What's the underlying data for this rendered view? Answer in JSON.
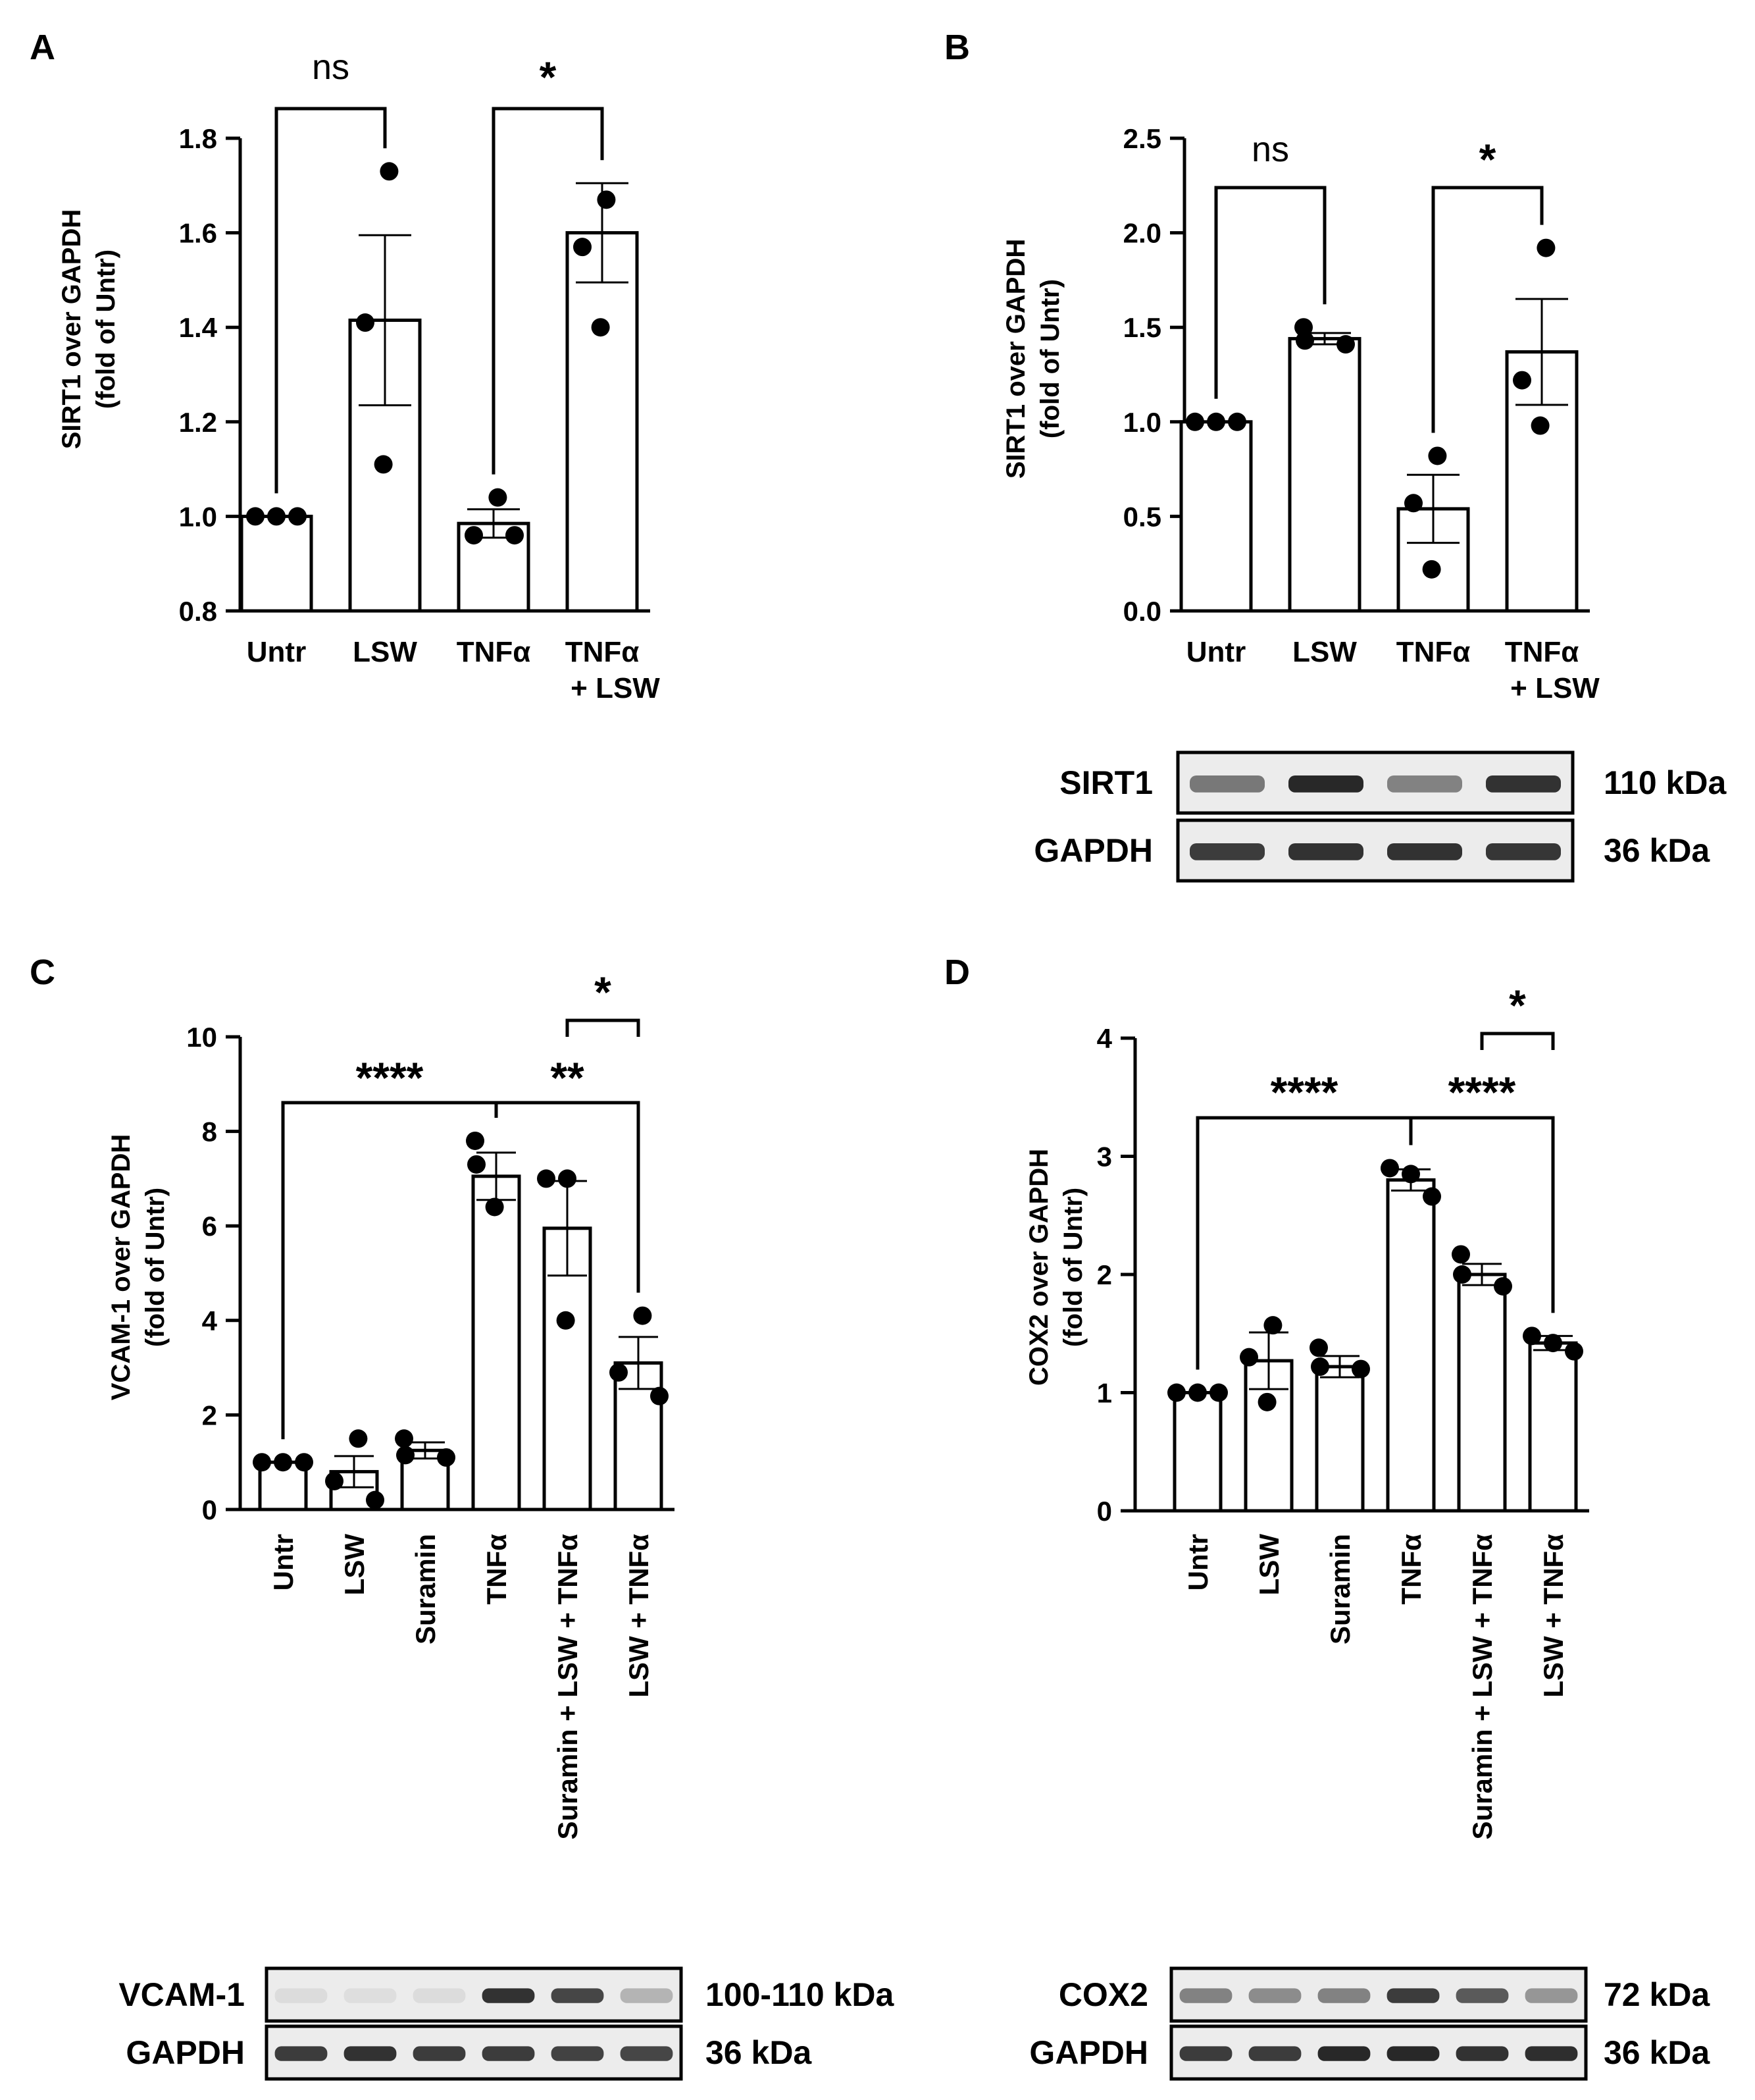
{
  "chart_data": [
    {
      "panel": "A",
      "type": "bar",
      "ylabel_lines": [
        "SIRT1 over GAPDH",
        "(fold of Untr)"
      ],
      "categories": [
        [
          "Untr"
        ],
        [
          "LSW"
        ],
        [
          "TNFα"
        ],
        [
          "TNFα",
          "+ LSW"
        ]
      ],
      "means": [
        1.0,
        1.415,
        0.985,
        1.6
      ],
      "sem": [
        0.0,
        0.18,
        0.03,
        0.105
      ],
      "points": [
        [
          1.0,
          1.0,
          1.0
        ],
        [
          1.73,
          1.41,
          1.11
        ],
        [
          1.04,
          0.96,
          0.96
        ],
        [
          1.67,
          1.57,
          1.4
        ]
      ],
      "ylim": [
        0.8,
        1.8
      ],
      "yticks": [
        "0.8",
        "1.0",
        "1.2",
        "1.4",
        "1.6",
        "1.8"
      ],
      "comparisons": [
        {
          "from": 0,
          "to": 1,
          "label": "ns"
        },
        {
          "from": 2,
          "to": 3,
          "label": "*"
        }
      ]
    },
    {
      "panel": "B",
      "type": "bar",
      "ylabel_lines": [
        "SIRT1 over GAPDH",
        "(fold of Untr)"
      ],
      "categories": [
        [
          "Untr"
        ],
        [
          "LSW"
        ],
        [
          "TNFα"
        ],
        [
          "TNFα",
          "+ LSW"
        ]
      ],
      "means": [
        1.0,
        1.44,
        0.54,
        1.37
      ],
      "sem": [
        0.0,
        0.03,
        0.18,
        0.28
      ],
      "points": [
        [
          1.0,
          1.0,
          1.0
        ],
        [
          1.5,
          1.43,
          1.41
        ],
        [
          0.82,
          0.57,
          0.22
        ],
        [
          1.92,
          1.22,
          0.98
        ]
      ],
      "ylim": [
        0.0,
        2.5
      ],
      "yticks": [
        "0.0",
        "0.5",
        "1.0",
        "1.5",
        "2.0",
        "2.5"
      ],
      "comparisons": [
        {
          "from": 0,
          "to": 1,
          "label": "ns"
        },
        {
          "from": 2,
          "to": 3,
          "label": "*"
        }
      ],
      "blot": [
        {
          "name": "SIRT1",
          "size": "110 kDa",
          "intensity": [
            0.55,
            0.95,
            0.5,
            0.9
          ]
        },
        {
          "name": "GAPDH",
          "size": "36 kDa",
          "intensity": [
            0.85,
            0.9,
            0.9,
            0.88
          ]
        }
      ]
    },
    {
      "panel": "C",
      "type": "bar",
      "ylabel_lines": [
        "VCAM-1 over GAPDH",
        "(fold of Untr)"
      ],
      "categories": [
        [
          "Untr"
        ],
        [
          "LSW"
        ],
        [
          "Suramin"
        ],
        [
          "TNFα"
        ],
        [
          "Suramin + LSW + TNFα"
        ],
        [
          "LSW + TNFα"
        ]
      ],
      "means": [
        1.0,
        0.8,
        1.25,
        7.05,
        5.95,
        3.1
      ],
      "sem": [
        0.0,
        0.33,
        0.17,
        0.5,
        1.0,
        0.55
      ],
      "points": [
        [
          1.0,
          1.0,
          1.0
        ],
        [
          1.5,
          0.6,
          0.2
        ],
        [
          1.5,
          1.15,
          1.1
        ],
        [
          7.8,
          7.3,
          6.4
        ],
        [
          7.0,
          7.0,
          4.0
        ],
        [
          4.1,
          2.9,
          2.4
        ]
      ],
      "ylim": [
        0,
        10
      ],
      "yticks": [
        "0",
        "2",
        "4",
        "6",
        "8",
        "10"
      ],
      "comparisons": [
        {
          "from": 0,
          "to": 3,
          "label": "****"
        },
        {
          "from": 3,
          "to": 5,
          "label": "**"
        },
        {
          "from": 4,
          "to": 5,
          "label": "*"
        }
      ],
      "blot": [
        {
          "name": "VCAM-1",
          "size": "100-110 kDa",
          "intensity": [
            0.05,
            0.04,
            0.05,
            0.9,
            0.8,
            0.25
          ]
        },
        {
          "name": "GAPDH",
          "size": "36 kDa",
          "intensity": [
            0.85,
            0.9,
            0.85,
            0.85,
            0.82,
            0.8
          ]
        }
      ]
    },
    {
      "panel": "D",
      "type": "bar",
      "ylabel_lines": [
        "COX2 over GAPDH",
        "(fold of Untr)"
      ],
      "categories": [
        [
          "Untr"
        ],
        [
          "LSW"
        ],
        [
          "Suramin"
        ],
        [
          "TNFα"
        ],
        [
          "Suramin + LSW + TNFα"
        ],
        [
          "LSW + TNFα"
        ]
      ],
      "means": [
        1.0,
        1.27,
        1.22,
        2.8,
        2.0,
        1.42
      ],
      "sem": [
        0.0,
        0.24,
        0.09,
        0.09,
        0.09,
        0.06
      ],
      "points": [
        [
          1.0,
          1.0,
          1.0
        ],
        [
          1.57,
          1.3,
          0.92
        ],
        [
          1.38,
          1.22,
          1.2
        ],
        [
          2.9,
          2.85,
          2.66
        ],
        [
          2.17,
          2.0,
          1.9
        ],
        [
          1.48,
          1.42,
          1.35
        ]
      ],
      "ylim": [
        0,
        4
      ],
      "yticks": [
        "0",
        "1",
        "2",
        "3",
        "4"
      ],
      "comparisons": [
        {
          "from": 0,
          "to": 3,
          "label": "****"
        },
        {
          "from": 3,
          "to": 5,
          "label": "****"
        },
        {
          "from": 4,
          "to": 5,
          "label": "*"
        }
      ],
      "blot": [
        {
          "name": "COX2",
          "size": "72 kDa",
          "intensity": [
            0.5,
            0.45,
            0.5,
            0.85,
            0.7,
            0.4
          ]
        },
        {
          "name": "GAPDH",
          "size": "36 kDa",
          "intensity": [
            0.85,
            0.85,
            0.95,
            0.95,
            0.9,
            0.92
          ]
        }
      ]
    }
  ]
}
